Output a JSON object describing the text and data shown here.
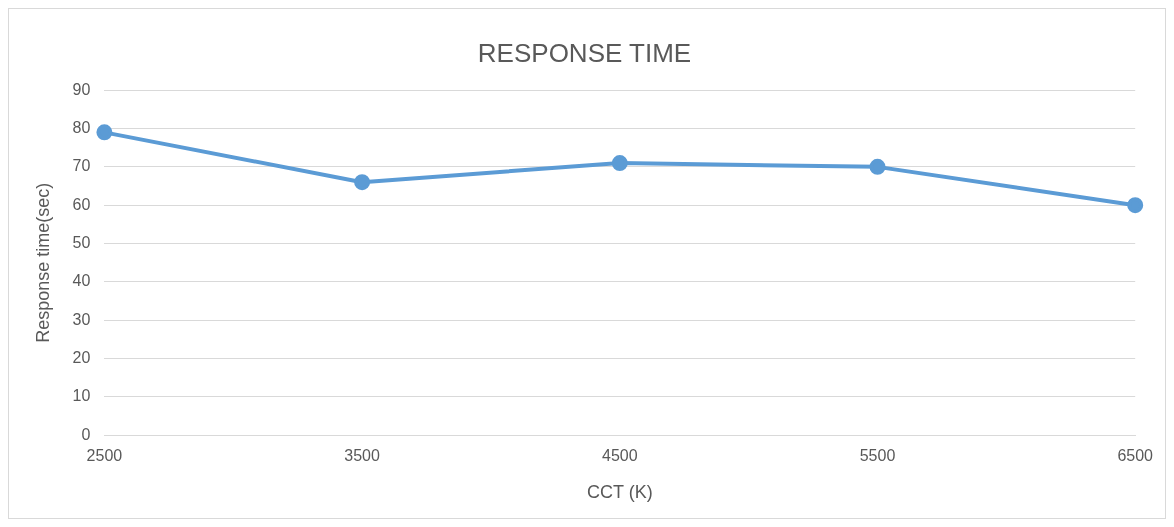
{
  "chart_data": {
    "type": "line",
    "title": "RESPONSE TIME",
    "xlabel": "CCT (K)",
    "ylabel": "Response time(sec)",
    "categories": [
      "2500",
      "3500",
      "4500",
      "5500",
      "6500"
    ],
    "series": [
      {
        "color": "#5b9bd5",
        "values": [
          79,
          66,
          71,
          70,
          60
        ]
      }
    ],
    "ylim": [
      0,
      90
    ],
    "yticks": [
      0,
      10,
      20,
      30,
      40,
      50,
      60,
      70,
      80,
      90
    ],
    "grid": "y",
    "legend": false,
    "marker": "circle",
    "line_style": "solid"
  }
}
